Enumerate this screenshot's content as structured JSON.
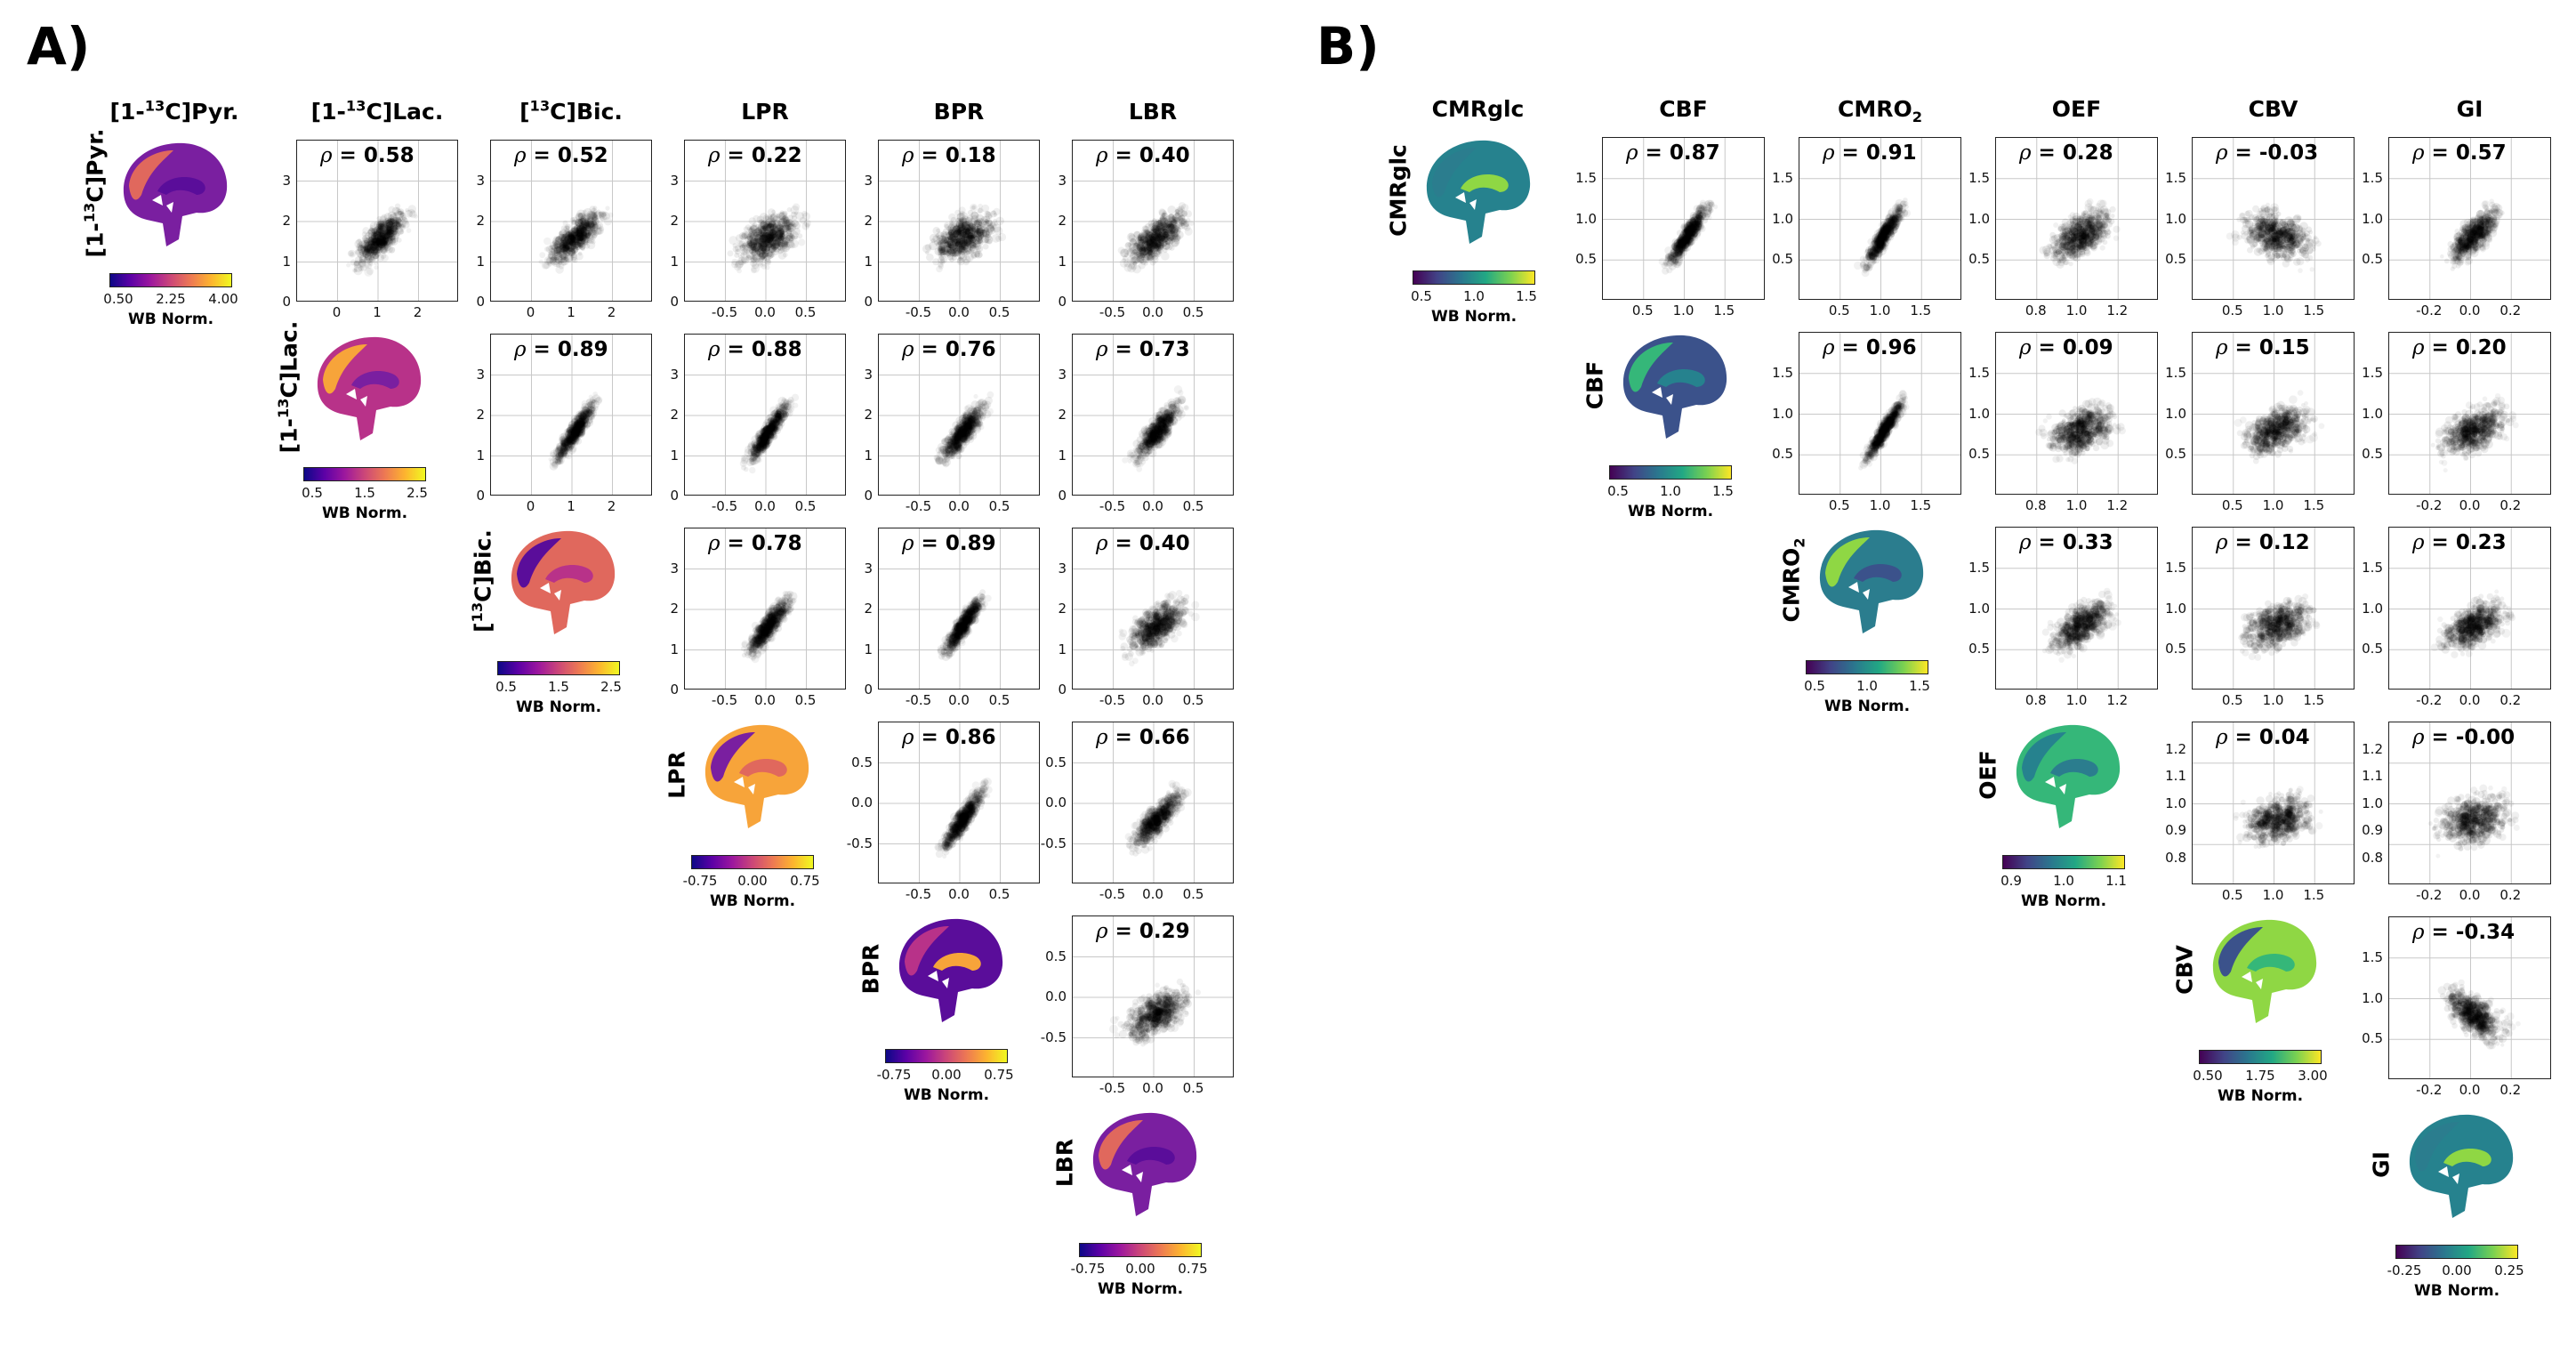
{
  "panels": [
    {
      "letter": "A)",
      "columns": [
        "[1-13C]Pyr.",
        "[1-13C]Lac.",
        "[13C]Bic.",
        "LPR",
        "BPR",
        "LBR"
      ],
      "colorbar_label": "WB Norm.",
      "colormap": "plasma",
      "diagonal": [
        {
          "name": "[1-13C]Pyr.",
          "cbar_ticks": [
            "0.50",
            "2.25",
            "4.00"
          ]
        },
        {
          "name": "[1-13C]Lac.",
          "cbar_ticks": [
            "0.5",
            "1.5",
            "2.5"
          ]
        },
        {
          "name": "[13C]Bic.",
          "cbar_ticks": [
            "0.5",
            "1.5",
            "2.5"
          ]
        },
        {
          "name": "LPR",
          "cbar_ticks": [
            "-0.75",
            "0.00",
            "0.75"
          ]
        },
        {
          "name": "BPR",
          "cbar_ticks": [
            "-0.75",
            "0.00",
            "0.75"
          ]
        },
        {
          "name": "LBR",
          "cbar_ticks": [
            "-0.75",
            "0.00",
            "0.75"
          ]
        }
      ],
      "x_ticks": {
        "1": [
          "0",
          "1",
          "2"
        ],
        "2": [
          "0",
          "1",
          "2"
        ],
        "3": [
          "-0.5",
          "0.0",
          "0.5"
        ],
        "4": [
          "-0.5",
          "0.0",
          "0.5"
        ],
        "5": [
          "-0.5",
          "0.0",
          "0.5"
        ]
      },
      "y_ticks": {
        "0": [
          "0",
          "1",
          "2",
          "3"
        ],
        "1": [
          "0",
          "1",
          "2",
          "3"
        ],
        "2": [
          "0",
          "1",
          "2",
          "3"
        ],
        "3": [
          "-0.5",
          "0.0",
          "0.5"
        ],
        "4": [
          "-0.5",
          "0.0",
          "0.5"
        ]
      }
    },
    {
      "letter": "B)",
      "columns": [
        "CMRglc",
        "CBF",
        "CMRO2",
        "OEF",
        "CBV",
        "GI"
      ],
      "colorbar_label": "WB Norm.",
      "colormap": "viridis",
      "diagonal": [
        {
          "name": "CMRglc",
          "cbar_ticks": [
            "0.5",
            "1.0",
            "1.5"
          ]
        },
        {
          "name": "CBF",
          "cbar_ticks": [
            "0.5",
            "1.0",
            "1.5"
          ]
        },
        {
          "name": "CMRO2",
          "cbar_ticks": [
            "0.5",
            "1.0",
            "1.5"
          ]
        },
        {
          "name": "OEF",
          "cbar_ticks": [
            "0.9",
            "1.0",
            "1.1"
          ]
        },
        {
          "name": "CBV",
          "cbar_ticks": [
            "0.50",
            "1.75",
            "3.00"
          ]
        },
        {
          "name": "GI",
          "cbar_ticks": [
            "-0.25",
            "0.00",
            "0.25"
          ]
        }
      ],
      "x_ticks": {
        "1": [
          "0.5",
          "1.0",
          "1.5"
        ],
        "2": [
          "0.5",
          "1.0",
          "1.5"
        ],
        "3": [
          "0.8",
          "1.0",
          "1.2"
        ],
        "4": [
          "0.5",
          "1.0",
          "1.5"
        ],
        "5": [
          "-0.2",
          "0.0",
          "0.2"
        ]
      },
      "y_ticks": {
        "0": [
          "0.5",
          "1.0",
          "1.5"
        ],
        "1": [
          "0.5",
          "1.0",
          "1.5"
        ],
        "2": [
          "0.5",
          "1.0",
          "1.5"
        ],
        "3": [
          "0.8",
          "0.9",
          "1.0",
          "1.1",
          "1.2"
        ],
        "4": [
          "0.5",
          "1.0",
          "1.5"
        ]
      }
    }
  ],
  "chart_data": [
    {
      "type": "scatter",
      "title": "A)",
      "variables": [
        "[1-13C]Pyr.",
        "[1-13C]Lac.",
        "[13C]Bic.",
        "LPR",
        "BPR",
        "LBR"
      ],
      "correlations": [
        {
          "row": "[1-13C]Pyr.",
          "col": "[1-13C]Lac.",
          "rho": "0.58"
        },
        {
          "row": "[1-13C]Pyr.",
          "col": "[13C]Bic.",
          "rho": "0.52"
        },
        {
          "row": "[1-13C]Pyr.",
          "col": "LPR",
          "rho": "0.22"
        },
        {
          "row": "[1-13C]Pyr.",
          "col": "BPR",
          "rho": "0.18"
        },
        {
          "row": "[1-13C]Pyr.",
          "col": "LBR",
          "rho": "0.40"
        },
        {
          "row": "[1-13C]Lac.",
          "col": "[13C]Bic.",
          "rho": "0.89"
        },
        {
          "row": "[1-13C]Lac.",
          "col": "LPR",
          "rho": "0.88"
        },
        {
          "row": "[1-13C]Lac.",
          "col": "BPR",
          "rho": "0.76"
        },
        {
          "row": "[1-13C]Lac.",
          "col": "LBR",
          "rho": "0.73"
        },
        {
          "row": "[13C]Bic.",
          "col": "LPR",
          "rho": "0.78"
        },
        {
          "row": "[13C]Bic.",
          "col": "BPR",
          "rho": "0.89"
        },
        {
          "row": "[13C]Bic.",
          "col": "LBR",
          "rho": "0.40"
        },
        {
          "row": "LPR",
          "col": "BPR",
          "rho": "0.86"
        },
        {
          "row": "LPR",
          "col": "LBR",
          "rho": "0.66"
        },
        {
          "row": "BPR",
          "col": "LBR",
          "rho": "0.29"
        }
      ]
    },
    {
      "type": "scatter",
      "title": "B)",
      "variables": [
        "CMRglc",
        "CBF",
        "CMRO2",
        "OEF",
        "CBV",
        "GI"
      ],
      "correlations": [
        {
          "row": "CMRglc",
          "col": "CBF",
          "rho": "0.87"
        },
        {
          "row": "CMRglc",
          "col": "CMRO2",
          "rho": "0.91"
        },
        {
          "row": "CMRglc",
          "col": "OEF",
          "rho": "0.28"
        },
        {
          "row": "CMRglc",
          "col": "CBV",
          "rho": "-0.03"
        },
        {
          "row": "CMRglc",
          "col": "GI",
          "rho": "0.57"
        },
        {
          "row": "CBF",
          "col": "CMRO2",
          "rho": "0.96"
        },
        {
          "row": "CBF",
          "col": "OEF",
          "rho": "0.09"
        },
        {
          "row": "CBF",
          "col": "CBV",
          "rho": "0.15"
        },
        {
          "row": "CBF",
          "col": "GI",
          "rho": "0.20"
        },
        {
          "row": "CMRO2",
          "col": "OEF",
          "rho": "0.33"
        },
        {
          "row": "CMRO2",
          "col": "CBV",
          "rho": "0.12"
        },
        {
          "row": "CMRO2",
          "col": "GI",
          "rho": "0.23"
        },
        {
          "row": "OEF",
          "col": "CBV",
          "rho": "0.04"
        },
        {
          "row": "OEF",
          "col": "GI",
          "rho": "-0.00"
        },
        {
          "row": "CBV",
          "col": "GI",
          "rho": "-0.34"
        }
      ]
    }
  ]
}
